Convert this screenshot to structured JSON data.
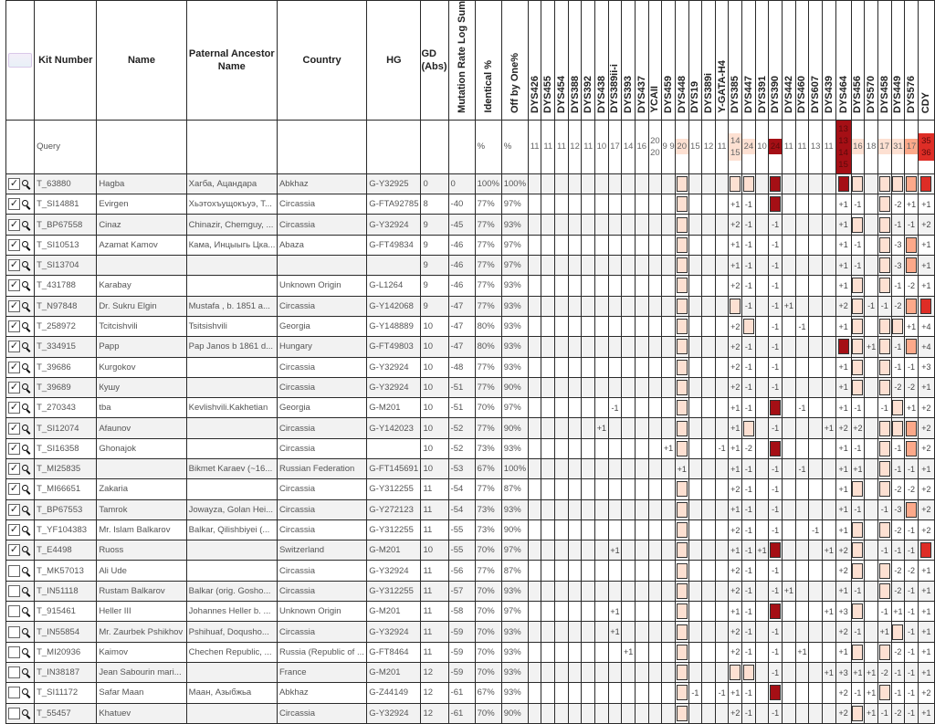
{
  "headers": {
    "select": "",
    "kit": "Kit Number",
    "name": "Name",
    "ancestor": "Paternal Ancestor Name",
    "country": "Country",
    "hg": "HG",
    "gd": "GD (Abs)",
    "mr": "Mutation Rate Log Sum",
    "ident": "Identical %",
    "off": "Off by One%"
  },
  "markers": [
    "DYS426",
    "DYS455",
    "DYS454",
    "DYS388",
    "DYS392",
    "DYS438",
    "DYS389ii-i",
    "DYS393",
    "DYS437",
    "YCAII",
    "DYS459",
    "DYS448",
    "DYS19",
    "DYS389i",
    "Y-GATA-H4",
    "DYS385",
    "DYS447",
    "DYS391",
    "DYS390",
    "DYS442",
    "DYS460",
    "DYS607",
    "DYS439",
    "DYS464",
    "DYS456",
    "DYS570",
    "DYS458",
    "DYS449",
    "DYS576",
    "CDY"
  ],
  "marker_colors": {
    "11": "#fde0d2",
    "15": "#fde0d2",
    "16": "#fde0d2",
    "18": "#a50f15",
    "23": "#a50f15",
    "24": "#fde0d2",
    "26": "#fde0d2",
    "27": "#fde0d2",
    "28": "#fca98a",
    "29": "#de2d26"
  },
  "query": {
    "label": "Query",
    "ident": "%",
    "off": "%",
    "values": [
      "11",
      "11",
      "11",
      "12",
      "11",
      "10",
      "17",
      "14",
      "16",
      "20 20",
      "9 9",
      "20",
      "15",
      "12",
      "11",
      "14 15",
      "24",
      "10",
      "24",
      "11",
      "11",
      "13",
      "11",
      "13 13 14 15",
      "16",
      "18",
      "17",
      "31",
      "17",
      "35 36"
    ]
  },
  "rows": [
    {
      "checked": true,
      "kit": "T_63880",
      "name": "Hagba",
      "ancestor": "Хагба, Ацандара",
      "country": "Abkhaz",
      "hg": "G-Y32925",
      "gd": "0",
      "mr": "0",
      "ident": "100%",
      "off": "100%",
      "diffs": {
        "11": "■",
        "15": "■",
        "16": "■",
        "18": "■",
        "23": "■",
        "24": "■",
        "26": "■",
        "27": "■",
        "28": "■",
        "29": "■"
      }
    },
    {
      "checked": true,
      "kit": "T_SI14881",
      "name": "Evirgen",
      "ancestor": "Хьэтохъущокъуэ, Т...",
      "country": "Circassia",
      "hg": "G-FTA92785",
      "gd": "8",
      "mr": "-40",
      "ident": "77%",
      "off": "97%",
      "diffs": {
        "11": "■",
        "15": "+1",
        "16": "-1",
        "18": "■",
        "23": "+1",
        "24": "-1",
        "26": "■",
        "27": "-2",
        "28": "+1",
        "29": "+1"
      }
    },
    {
      "checked": true,
      "kit": "T_BP67558",
      "name": "Cinaz",
      "ancestor": "Chinazir, Chemguy, ...",
      "country": "Circassia",
      "hg": "G-Y32924",
      "gd": "9",
      "mr": "-45",
      "ident": "77%",
      "off": "93%",
      "diffs": {
        "11": "■",
        "15": "+2",
        "16": "-1",
        "18": "-1",
        "23": "+1",
        "24": "■",
        "26": "■",
        "27": "-1",
        "28": "-1",
        "29": "+2"
      }
    },
    {
      "checked": true,
      "kit": "T_SI10513",
      "name": "Azamat Kamov",
      "ancestor": "Кама, Инцыыгь Цка...",
      "country": "Abaza",
      "hg": "G-FT49834",
      "gd": "9",
      "mr": "-46",
      "ident": "77%",
      "off": "97%",
      "diffs": {
        "11": "■",
        "15": "+1",
        "16": "-1",
        "18": "-1",
        "23": "+1",
        "24": "-1",
        "26": "■",
        "27": "-3",
        "28": "■",
        "29": "+1"
      }
    },
    {
      "checked": true,
      "kit": "T_SI13704",
      "name": "",
      "ancestor": "",
      "country": "",
      "hg": "",
      "gd": "9",
      "mr": "-46",
      "ident": "77%",
      "off": "97%",
      "diffs": {
        "11": "■",
        "15": "+1",
        "16": "-1",
        "18": "-1",
        "23": "+1",
        "24": "-1",
        "26": "■",
        "27": "-3",
        "28": "■",
        "29": "+1"
      }
    },
    {
      "checked": true,
      "kit": "T_431788",
      "name": "Karabay",
      "ancestor": "",
      "country": "Unknown Origin",
      "hg": "G-L1264",
      "gd": "9",
      "mr": "-46",
      "ident": "77%",
      "off": "93%",
      "diffs": {
        "11": "■",
        "15": "+2",
        "16": "-1",
        "18": "-1",
        "23": "+1",
        "24": "■",
        "26": "■",
        "27": "-1",
        "28": "-2",
        "29": "+1"
      }
    },
    {
      "checked": true,
      "kit": "T_N97848",
      "name": "Dr. Sukru Elgin",
      "ancestor": "Mustafa , b. 1851 a...",
      "country": "Circassia",
      "hg": "G-Y142068",
      "gd": "9",
      "mr": "-47",
      "ident": "77%",
      "off": "93%",
      "diffs": {
        "11": "■",
        "15": "■",
        "16": "-1",
        "18": "-1",
        "19": "+1",
        "23": "+2",
        "24": "■",
        "25": "-1",
        "26": "-1",
        "27": "-2",
        "28": "■",
        "29": "■"
      }
    },
    {
      "checked": true,
      "kit": "T_258972",
      "name": "Tcitcishvili",
      "ancestor": "Tsitsishvili",
      "country": "Georgia",
      "hg": "G-Y148889",
      "gd": "10",
      "mr": "-47",
      "ident": "80%",
      "off": "93%",
      "diffs": {
        "11": "■",
        "15": "+2",
        "16": "■",
        "18": "-1",
        "20": "-1",
        "23": "+1",
        "24": "■",
        "26": "■",
        "27": "■",
        "28": "+1",
        "29": "+4"
      }
    },
    {
      "checked": true,
      "kit": "T_334915",
      "name": "Papp",
      "ancestor": "Pap Janos b 1861 d...",
      "country": "Hungary",
      "hg": "G-FT49803",
      "gd": "10",
      "mr": "-47",
      "ident": "80%",
      "off": "93%",
      "diffs": {
        "11": "■",
        "15": "+2",
        "16": "-1",
        "18": "-1",
        "23": "■",
        "24": "■",
        "25": "+1",
        "26": "■",
        "27": "-1",
        "28": "■",
        "29": "+4"
      }
    },
    {
      "checked": true,
      "kit": "T_39686",
      "name": "Kurgokov",
      "ancestor": "",
      "country": "Circassia",
      "hg": "G-Y32924",
      "gd": "10",
      "mr": "-48",
      "ident": "77%",
      "off": "93%",
      "diffs": {
        "11": "■",
        "15": "+2",
        "16": "-1",
        "18": "-1",
        "23": "+1",
        "24": "■",
        "26": "■",
        "27": "-1",
        "28": "-1",
        "29": "+3"
      }
    },
    {
      "checked": true,
      "kit": "T_39689",
      "name": "Кушу",
      "ancestor": "",
      "country": "Circassia",
      "hg": "G-Y32924",
      "gd": "10",
      "mr": "-51",
      "ident": "77%",
      "off": "90%",
      "diffs": {
        "11": "■",
        "15": "+2",
        "16": "-1",
        "18": "-1",
        "23": "+1",
        "24": "■",
        "26": "■",
        "27": "-2",
        "28": "-2",
        "29": "+1"
      }
    },
    {
      "checked": true,
      "kit": "T_270343",
      "name": "tba",
      "ancestor": "Kevlishvili.Kakhetian",
      "country": "Georgia",
      "hg": "G-M201",
      "gd": "10",
      "mr": "-51",
      "ident": "70%",
      "off": "97%",
      "diffs": {
        "6": "-1",
        "11": "■",
        "15": "+1",
        "16": "-1",
        "18": "■",
        "20": "-1",
        "23": "+1",
        "24": "-1",
        "26": "-1",
        "27": "■",
        "28": "+1",
        "29": "+2"
      }
    },
    {
      "checked": true,
      "kit": "T_SI12074",
      "name": "Afaunov",
      "ancestor": "",
      "country": "Circassia",
      "hg": "G-Y142023",
      "gd": "10",
      "mr": "-52",
      "ident": "77%",
      "off": "90%",
      "diffs": {
        "5": "+1",
        "11": "■",
        "15": "+1",
        "16": "■",
        "18": "-1",
        "22": "+1",
        "23": "+2",
        "24": "+2",
        "26": "■",
        "27": "■",
        "28": "■",
        "29": "+2"
      }
    },
    {
      "checked": true,
      "kit": "T_SI16358",
      "name": "Ghonajok",
      "ancestor": "",
      "country": "Circassia",
      "hg": "",
      "gd": "10",
      "mr": "-52",
      "ident": "73%",
      "off": "93%",
      "diffs": {
        "10": "+1",
        "11": "■",
        "14": "-1",
        "15": "+1",
        "16": "-2",
        "18": "■",
        "23": "+1",
        "24": "-1",
        "26": "■",
        "27": "-1",
        "28": "■",
        "29": "+2"
      }
    },
    {
      "checked": true,
      "kit": "T_MI25835",
      "name": "",
      "ancestor": "Bikmet Karaev (~16...",
      "country": "Russian Federation",
      "hg": "G-FT145691",
      "gd": "10",
      "mr": "-53",
      "ident": "67%",
      "off": "100%",
      "diffs": {
        "11": "+1",
        "15": "+1",
        "16": "-1",
        "18": "-1",
        "20": "-1",
        "23": "+1",
        "24": "+1",
        "26": "■",
        "27": "-1",
        "28": "-1",
        "29": "+1"
      }
    },
    {
      "checked": true,
      "kit": "T_MI66651",
      "name": "Zakaria",
      "ancestor": "",
      "country": "Circassia",
      "hg": "G-Y312255",
      "gd": "11",
      "mr": "-54",
      "ident": "77%",
      "off": "87%",
      "diffs": {
        "11": "■",
        "15": "+2",
        "16": "-1",
        "18": "-1",
        "23": "+1",
        "24": "■",
        "26": "■",
        "27": "-2",
        "28": "-2",
        "29": "+2"
      }
    },
    {
      "checked": true,
      "kit": "T_BP67553",
      "name": "Tamrok",
      "ancestor": "Jowayza, Golan Hei...",
      "country": "Circassia",
      "hg": "G-Y272123",
      "gd": "11",
      "mr": "-54",
      "ident": "73%",
      "off": "93%",
      "diffs": {
        "11": "■",
        "15": "+1",
        "16": "-1",
        "18": "-1",
        "23": "+1",
        "24": "-1",
        "26": "-1",
        "27": "-3",
        "28": "■",
        "29": "+2"
      }
    },
    {
      "checked": true,
      "kit": "T_YF104383",
      "name": "Mr. Islam Balkarov",
      "ancestor": "Balkar, Qilishbiyei (...",
      "country": "Circassia",
      "hg": "G-Y312255",
      "gd": "11",
      "mr": "-55",
      "ident": "73%",
      "off": "90%",
      "diffs": {
        "11": "■",
        "15": "+2",
        "16": "-1",
        "18": "-1",
        "21": "-1",
        "23": "+1",
        "24": "■",
        "26": "■",
        "27": "-2",
        "28": "-1",
        "29": "+2"
      }
    },
    {
      "checked": true,
      "kit": "T_E4498",
      "name": "Ruoss",
      "ancestor": "",
      "country": "Switzerland",
      "hg": "G-M201",
      "gd": "10",
      "mr": "-55",
      "ident": "70%",
      "off": "97%",
      "diffs": {
        "6": "+1",
        "11": "■",
        "15": "+1",
        "16": "-1",
        "17": "+1",
        "18": "■",
        "22": "+1",
        "23": "+2",
        "24": "■",
        "26": "-1",
        "27": "-1",
        "28": "-1",
        "29": "■"
      }
    },
    {
      "checked": false,
      "kit": "T_MK57013",
      "name": "Ali Ude",
      "ancestor": "",
      "country": "Circassia",
      "hg": "G-Y32924",
      "gd": "11",
      "mr": "-56",
      "ident": "77%",
      "off": "87%",
      "diffs": {
        "11": "■",
        "15": "+2",
        "16": "-1",
        "18": "-1",
        "23": "+2",
        "24": "■",
        "26": "■",
        "27": "-2",
        "28": "-2",
        "29": "+1"
      }
    },
    {
      "checked": false,
      "kit": "T_IN51118",
      "name": "Rustam Balkarov",
      "ancestor": "Balkar (orig. Gosho...",
      "country": "Circassia",
      "hg": "G-Y312255",
      "gd": "11",
      "mr": "-57",
      "ident": "70%",
      "off": "93%",
      "diffs": {
        "11": "■",
        "15": "+2",
        "16": "-1",
        "18": "-1",
        "19": "+1",
        "23": "+1",
        "24": "-1",
        "26": "■",
        "27": "-2",
        "28": "-1",
        "29": "+1"
      }
    },
    {
      "checked": false,
      "kit": "T_915461",
      "name": "Heller III",
      "ancestor": "Johannes Heller b. ...",
      "country": "Unknown Origin",
      "hg": "G-M201",
      "gd": "11",
      "mr": "-58",
      "ident": "70%",
      "off": "97%",
      "diffs": {
        "6": "+1",
        "11": "■",
        "15": "+1",
        "16": "-1",
        "18": "■",
        "22": "+1",
        "23": "+3",
        "24": "■",
        "26": "-1",
        "27": "+1",
        "28": "-1",
        "29": "+1"
      }
    },
    {
      "checked": false,
      "kit": "T_IN55854",
      "name": "Mr. Zaurbek Pshikhov",
      "ancestor": "Pshihuaf, Doqusho...",
      "country": "Circassia",
      "hg": "G-Y32924",
      "gd": "11",
      "mr": "-59",
      "ident": "70%",
      "off": "93%",
      "diffs": {
        "6": "+1",
        "11": "■",
        "15": "+2",
        "16": "-1",
        "18": "-1",
        "23": "+2",
        "24": "-1",
        "26": "+1",
        "27": "■",
        "28": "-1",
        "29": "+1"
      }
    },
    {
      "checked": false,
      "kit": "T_MI20936",
      "name": "Kaimov",
      "ancestor": "Chechen Republic, ...",
      "country": "Russia (Republic of ...",
      "hg": "G-FT8464",
      "gd": "11",
      "mr": "-59",
      "ident": "70%",
      "off": "93%",
      "diffs": {
        "7": "+1",
        "11": "■",
        "15": "+2",
        "16": "-1",
        "18": "-1",
        "20": "+1",
        "23": "+1",
        "24": "■",
        "26": "■",
        "27": "-2",
        "28": "-1",
        "29": "+1"
      }
    },
    {
      "checked": false,
      "kit": "T_IN38187",
      "name": "Jean Sabourin mari...",
      "ancestor": "",
      "country": "France",
      "hg": "G-M201",
      "gd": "12",
      "mr": "-59",
      "ident": "70%",
      "off": "93%",
      "diffs": {
        "11": "■",
        "15": "■",
        "16": "■",
        "18": "-1",
        "22": "+1",
        "23": "+3",
        "24": "+1",
        "25": "+1",
        "26": "-2",
        "27": "-1",
        "28": "-1",
        "29": "+1"
      }
    },
    {
      "checked": false,
      "kit": "T_SI11172",
      "name": "Safar Maan",
      "ancestor": "Маан, Азыбжьа",
      "country": "Abkhaz",
      "hg": "G-Z44149",
      "gd": "12",
      "mr": "-61",
      "ident": "67%",
      "off": "93%",
      "diffs": {
        "11": "■",
        "12": "-1",
        "14": "-1",
        "15": "+1",
        "16": "-1",
        "18": "■",
        "23": "+2",
        "24": "-1",
        "25": "+1",
        "26": "■",
        "27": "-1",
        "28": "-1",
        "29": "+2"
      }
    },
    {
      "checked": false,
      "kit": "T_55457",
      "name": "Khatuev",
      "ancestor": "",
      "country": "Circassia",
      "hg": "G-Y32924",
      "gd": "12",
      "mr": "-61",
      "ident": "70%",
      "off": "90%",
      "diffs": {
        "11": "■",
        "15": "+2",
        "16": "-1",
        "18": "-1",
        "23": "+2",
        "24": "■",
        "25": "+1",
        "26": "-1",
        "27": "-2",
        "28": "-1",
        "29": "+1"
      }
    }
  ]
}
